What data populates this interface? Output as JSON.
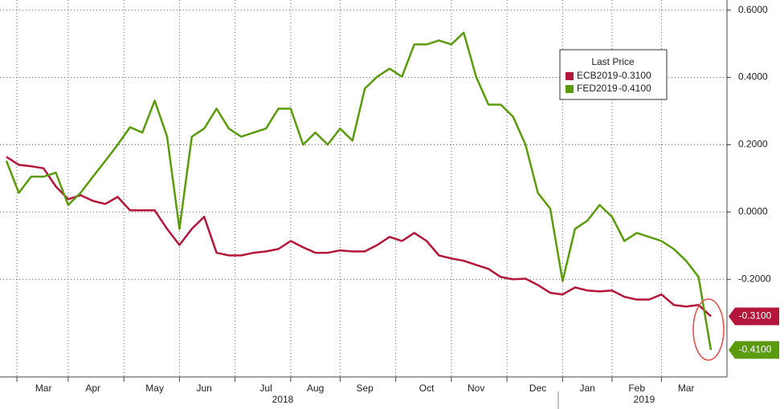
{
  "chart_data": {
    "type": "line",
    "categories": [
      null,
      null,
      null,
      "Mar",
      null,
      null,
      null,
      "Apr",
      null,
      null,
      null,
      null,
      "May",
      null,
      null,
      null,
      "Jun",
      null,
      null,
      null,
      null,
      "Jul",
      null,
      null,
      null,
      "Aug",
      null,
      null,
      null,
      "Sep",
      null,
      null,
      null,
      null,
      "Oct",
      null,
      null,
      null,
      "Nov",
      null,
      null,
      null,
      null,
      "Dec",
      null,
      null,
      null,
      "Jan",
      null,
      null,
      null,
      "Feb",
      null,
      null,
      null,
      "Mar",
      null,
      null
    ],
    "year_labels": [
      "2018",
      "2019"
    ],
    "legend_title": "Last Price",
    "series": [
      {
        "name": "ECB2019",
        "color": "#b3163a",
        "last_label": "-0.3100",
        "values": [
          0.164,
          0.14,
          0.136,
          0.13,
          0.076,
          0.038,
          0.05,
          0.033,
          0.024,
          0.045,
          0.005,
          0.005,
          0.005,
          -0.05,
          -0.098,
          -0.05,
          -0.014,
          -0.121,
          -0.129,
          -0.129,
          -0.121,
          -0.117,
          -0.11,
          -0.086,
          -0.105,
          -0.121,
          -0.121,
          -0.114,
          -0.117,
          -0.117,
          -0.098,
          -0.074,
          -0.086,
          -0.062,
          -0.086,
          -0.129,
          -0.138,
          -0.145,
          -0.157,
          -0.169,
          -0.193,
          -0.2,
          -0.198,
          -0.217,
          -0.24,
          -0.245,
          -0.224,
          -0.233,
          -0.236,
          -0.233,
          -0.252,
          -0.26,
          -0.26,
          -0.245,
          -0.276,
          -0.281,
          -0.276,
          -0.31
        ]
      },
      {
        "name": "FED2019",
        "color": "#5b9a0c",
        "last_label": "-0.4100",
        "values": [
          0.152,
          0.057,
          0.105,
          0.105,
          0.117,
          0.021,
          0.057,
          0.105,
          0.152,
          0.2,
          0.252,
          0.236,
          0.331,
          0.224,
          -0.05,
          0.224,
          0.248,
          0.307,
          0.248,
          0.224,
          0.236,
          0.248,
          0.307,
          0.307,
          0.2,
          0.236,
          0.2,
          0.248,
          0.212,
          0.367,
          0.402,
          0.426,
          0.402,
          0.498,
          0.498,
          0.51,
          0.498,
          0.533,
          0.402,
          0.319,
          0.319,
          0.283,
          0.2,
          0.057,
          0.01,
          -0.205,
          -0.05,
          -0.026,
          0.021,
          -0.014,
          -0.086,
          -0.062,
          -0.074,
          -0.086,
          -0.11,
          -0.145,
          -0.193,
          -0.41
        ]
      }
    ],
    "ylim": [
      -0.49,
      0.63
    ],
    "yticks": [
      {
        "value": 0.6,
        "label": "0.6000"
      },
      {
        "value": 0.4,
        "label": "0.4000"
      },
      {
        "value": 0.2,
        "label": "0.2000"
      },
      {
        "value": 0,
        "label": "0.0000"
      },
      {
        "value": -0.2,
        "label": "-0.2000"
      }
    ],
    "grid": true
  }
}
